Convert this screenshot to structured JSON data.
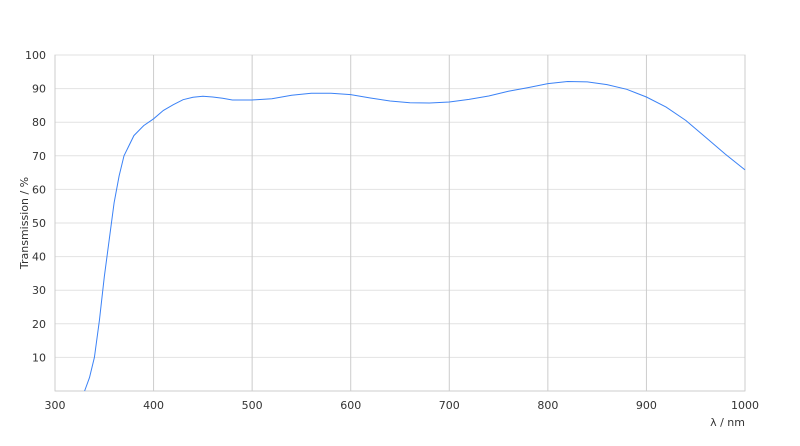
{
  "chart_data": {
    "type": "line",
    "title": "",
    "xlabel": "λ / nm",
    "ylabel": "Transmission / %",
    "xlim": [
      300,
      1000
    ],
    "ylim": [
      0,
      100
    ],
    "xticks": [
      300,
      400,
      500,
      600,
      700,
      800,
      900,
      1000
    ],
    "yticks": [
      10,
      20,
      30,
      40,
      50,
      60,
      70,
      80,
      90,
      100
    ],
    "grid": true,
    "line_color": "#3b82f6",
    "series": [
      {
        "x": [
          330,
          335,
          340,
          345,
          350,
          355,
          360,
          365,
          370,
          380,
          390,
          400,
          410,
          420,
          430,
          440,
          450,
          460,
          470,
          480,
          500,
          520,
          540,
          560,
          580,
          600,
          620,
          640,
          660,
          680,
          700,
          720,
          740,
          760,
          780,
          800,
          820,
          840,
          860,
          880,
          900,
          920,
          940,
          960,
          980,
          1000
        ],
        "y": [
          0,
          4,
          10,
          21,
          34,
          45,
          56,
          64,
          70,
          76,
          79,
          81,
          83.5,
          85.2,
          86.7,
          87.4,
          87.7,
          87.5,
          87.1,
          86.6,
          86.6,
          87,
          88,
          88.6,
          88.6,
          88.2,
          87.2,
          86.3,
          85.8,
          85.7,
          86,
          86.8,
          87.8,
          89.2,
          90.3,
          91.5,
          92.1,
          92,
          91.2,
          89.8,
          87.5,
          84.5,
          80.5,
          75.5,
          70.5,
          65.8
        ]
      }
    ]
  }
}
